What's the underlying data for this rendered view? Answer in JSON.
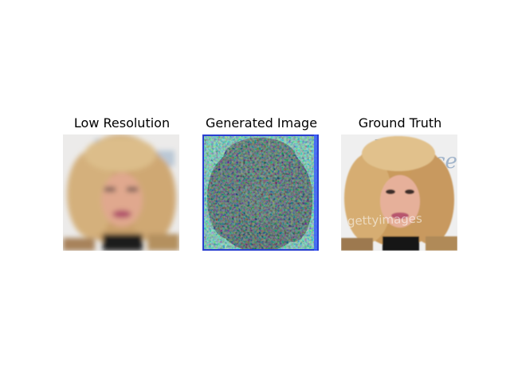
{
  "panels": [
    {
      "title": "Low Resolution"
    },
    {
      "title": "Generated Image"
    },
    {
      "title": "Ground Truth"
    }
  ],
  "watermark_text": "gettyimages",
  "colors": {
    "background": "#ffffff",
    "title_text": "#000000",
    "hair_blonde": "#d9b27a",
    "skin": "#e2a48a",
    "generated_background": "#55c79a",
    "generated_dark": "#0d2a14",
    "generated_outline": "#2a3fd0"
  }
}
